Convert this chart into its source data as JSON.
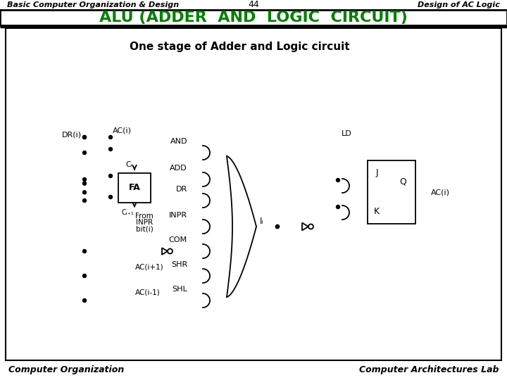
{
  "header_left": "Basic Computer Organization & Design",
  "header_center": "44",
  "header_right": "Design of AC Logic",
  "title_green": "ALU (ADDER  AND  LOGIC  CIRCUIT)",
  "subtitle": "One stage of Adder and Logic circuit",
  "footer_left": "Computer Organization",
  "footer_right": "Computer Architectures Lab",
  "bg_color": "#ffffff",
  "title_color": "#008000",
  "lw": 1.3
}
